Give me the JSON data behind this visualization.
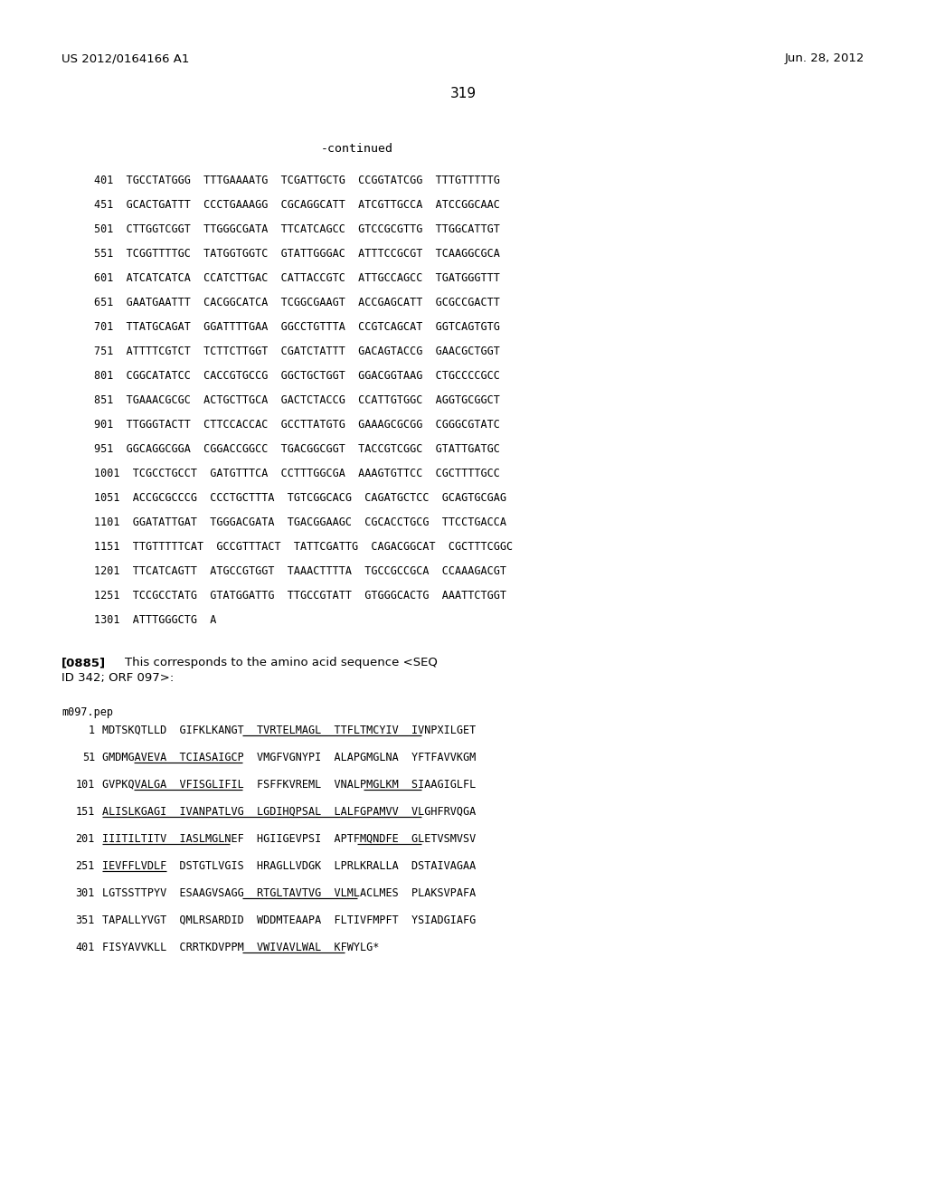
{
  "header_left": "US 2012/0164166 A1",
  "header_right": "Jun. 28, 2012",
  "page_number": "319",
  "continued_label": "-continued",
  "background_color": "#ffffff",
  "text_color": "#000000",
  "dna_lines": [
    "401  TGCCTATGGG  TTTGAAAATG  TCGATTGCTG  CCGGTATCGG  TTTGTTTTTG",
    "451  GCACTGATTT  CCCTGAAAGG  CGCAGGCATT  ATCGTTGCCA  ATCCGGCAAC",
    "501  CTTGGTCGGT  TTGGGCGATA  TTCATCAGCC  GTCCGCGTTG  TTGGCATTGT",
    "551  TCGGTTTTGC  TATGGTGGTC  GTATTGGGAC  ATTTCCGCGT  TCAAGGCGCA",
    "601  ATCATCATCA  CCATCTTGAC  CATTACCGTC  ATTGCCAGCC  TGATGGGTTT",
    "651  GAATGAATTT  CACGGCATCA  TCGGCGAAGT  ACCGAGCATT  GCGCCGACTT",
    "701  TTATGCAGAT  GGATTTTGAA  GGCCTGTTTA  CCGTCAGCAT  GGTCAGTGTG",
    "751  ATTTTCGTCT  TCTTCTTGGT  CGATCTATTT  GACAGTACCG  GAACGCTGGT",
    "801  CGGCATATCC  CACCGTGCCG  GGCTGCTGGT  GGACGGTAAG  CTGCCCCGCC",
    "851  TGAAACGCGC  ACTGCTTGCA  GACTCTACCG  CCATTGTGGC  AGGTGCGGCT",
    "901  TTGGGTACTT  CTTCCACCAC  GCCTTATGTG  GAAAGCGCGG  CGGGCGTATC",
    "951  GGCAGGCGGA  CGGACCGGCC  TGACGGCGGT  TACCGTCGGC  GTATTGATGC",
    "1001  TCGCCTGCCT  GATGTTTCA  CCTTTGGCGA  AAAGTGTTCC  CGCTTTTGCC",
    "1051  ACCGCGCCCG  CCCTGCTTTA  TGTCGGCACG  CAGATGCTCC  GCAGTGCGAG",
    "1101  GGATATTGAT  TGGGACGATA  TGACGGAAGC  CGCACCTGCG  TTCCTGACCA",
    "1151  TTGTTTTTCAT  GCCGTTTACT  TATTCGATTG  CAGACGGCAT  CGCTTTCGGC",
    "1201  TTCATCAGTT  ATGCCGTGGT  TAAACTTTTA  TGCCGCCGCA  CCAAAGACGT",
    "1251  TCCGCCTATG  GTATGGATTG  TTGCCGTATT  GTGGGCACTG  AAATTCTGGT",
    "1301  ATTTGGGCTG  A"
  ],
  "paragraph_label": "[0885]",
  "paragraph_line1": "This corresponds to the amino acid sequence <SEQ",
  "paragraph_line2": "ID 342; ORF 097>:",
  "protein_name": "m097.pep",
  "protein_lines": [
    {
      "num": "1",
      "seq": "MDTSKQTLLD  GIFKLKANGT  TVRTELMAGL  TTFLTMCYIV  IVNPXILGET",
      "underline_ranges": [
        [
          22,
          50
        ]
      ]
    },
    {
      "num": "51",
      "seq": "GMDMGAVEVA  TCIASAIGCP  VMGFVGNYPI  ALAPGMGLNA  YFTFAVVKGM",
      "underline_ranges": [
        [
          5,
          22
        ]
      ]
    },
    {
      "num": "101",
      "seq": "GVPKQVALGA  VFISGLIFIL  FSFFKVREML  VNALPMGLKM  SIAAGIGLFL",
      "underline_ranges": [
        [
          5,
          22
        ],
        [
          41,
          50
        ]
      ]
    },
    {
      "num": "151",
      "seq": "ALISLKGAGI  IVANPATLVG  LGDIHQPSAL  LALFGPAMVV  VLGHFRVQGA",
      "underline_ranges": [
        [
          0,
          50
        ]
      ]
    },
    {
      "num": "201",
      "seq": "IIITILTITV  IASLMGLNEF  HGIIGEVPSI  APTFMQNDFE  GLETVSMVSV",
      "underline_ranges": [
        [
          0,
          20
        ],
        [
          40,
          50
        ]
      ]
    },
    {
      "num": "251",
      "seq": "IEVFFLVDLF  DSTGTLVGIS  HRAGLLVDGK  LPRLKRALLA  DSTAIVAGAA",
      "underline_ranges": [
        [
          0,
          10
        ]
      ]
    },
    {
      "num": "301",
      "seq": "LGTSSTTPYV  ESAAGVSAGG  RTGLTAVTVG  VLMLACLMES  PLAKSVPAFA",
      "underline_ranges": [
        [
          22,
          40
        ]
      ]
    },
    {
      "num": "351",
      "seq": "TAPALLYVGT  QMLRSARDID  WDDMTEAAPA  FLTIVFMPFT  YSIADGIAFG",
      "underline_ranges": []
    },
    {
      "num": "401",
      "seq": "FISYAVVKLL  CRRTKDVPPM  VWIVAVLWAL  KFWYLG*",
      "underline_ranges": [
        [
          22,
          38
        ]
      ]
    }
  ]
}
